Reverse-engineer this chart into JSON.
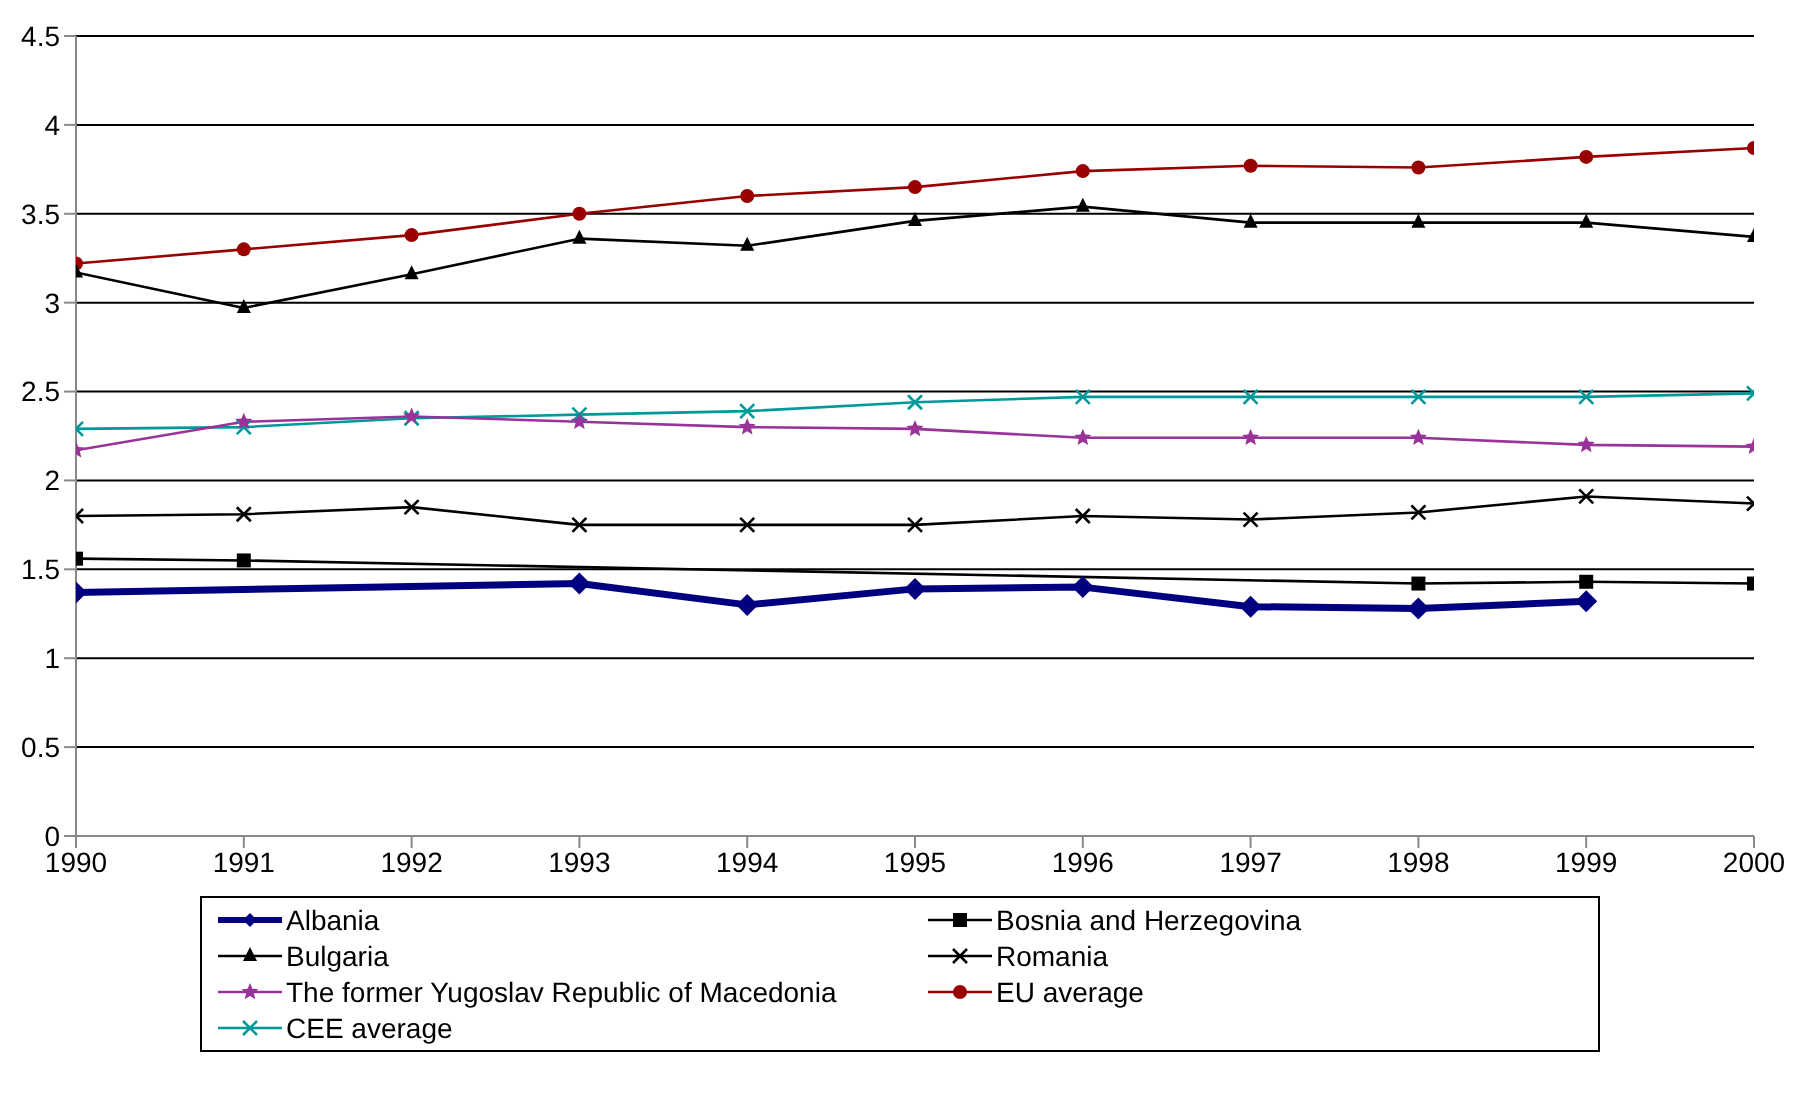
{
  "chart_data": {
    "type": "line",
    "x": [
      1990,
      1991,
      1992,
      1993,
      1994,
      1995,
      1996,
      1997,
      1998,
      1999,
      2000
    ],
    "series": [
      {
        "name": "Albania",
        "color": "#000080",
        "marker": "diamond",
        "values": [
          1.37,
          null,
          null,
          1.42,
          1.3,
          1.39,
          1.4,
          1.29,
          1.28,
          1.32,
          null
        ]
      },
      {
        "name": "Bosnia and Herzegovina",
        "color": "#000000",
        "marker": "square",
        "values": [
          1.56,
          1.55,
          null,
          null,
          null,
          null,
          null,
          null,
          1.42,
          1.43,
          1.42
        ]
      },
      {
        "name": "Bulgaria",
        "color": "#000000",
        "marker": "triangle",
        "values": [
          3.17,
          2.97,
          3.16,
          3.36,
          3.32,
          3.46,
          3.54,
          3.45,
          3.45,
          3.45,
          3.37
        ]
      },
      {
        "name": "Romania",
        "color": "#000000",
        "marker": "cross",
        "values": [
          1.8,
          1.81,
          1.85,
          1.75,
          1.75,
          1.75,
          1.8,
          1.78,
          1.82,
          1.91,
          1.87
        ]
      },
      {
        "name": "The former Yugoslav Republic of Macedonia",
        "color": "#993399",
        "marker": "star",
        "values": [
          2.17,
          2.33,
          2.36,
          2.33,
          2.3,
          2.29,
          2.24,
          2.24,
          2.24,
          2.2,
          2.19
        ]
      },
      {
        "name": "EU average",
        "color": "#990000",
        "marker": "circle",
        "values": [
          3.22,
          3.3,
          3.38,
          3.5,
          3.6,
          3.65,
          3.74,
          3.77,
          3.76,
          3.82,
          3.87
        ]
      },
      {
        "name": "CEE average",
        "color": "#009999",
        "marker": "cross",
        "values": [
          2.29,
          2.3,
          2.35,
          2.37,
          2.39,
          2.44,
          2.47,
          2.47,
          2.47,
          2.47,
          2.49
        ]
      }
    ],
    "xlim": [
      1990,
      2000
    ],
    "xticks": [
      1990,
      1991,
      1992,
      1993,
      1994,
      1995,
      1996,
      1997,
      1998,
      1999,
      2000
    ],
    "ylim": [
      0,
      4.5
    ],
    "yticks": [
      0,
      0.5,
      1,
      1.5,
      2,
      2.5,
      3,
      3.5,
      4,
      4.5
    ],
    "grid": "y",
    "legend": "bottom",
    "line_style": "solid"
  }
}
